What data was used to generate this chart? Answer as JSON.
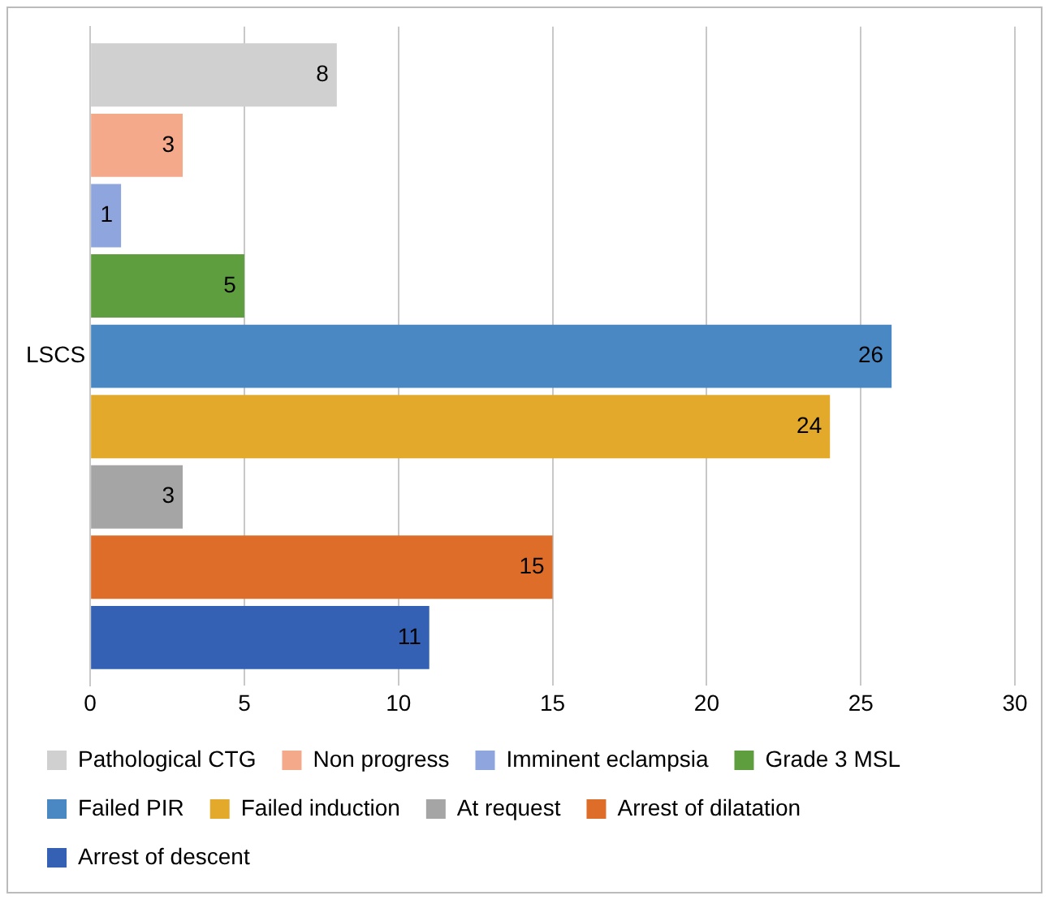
{
  "chart_data": {
    "type": "bar",
    "orientation": "horizontal",
    "categories": [
      "LSCS"
    ],
    "series": [
      {
        "name": "Pathological CTG",
        "color": "#d0d0d0",
        "values": [
          8
        ]
      },
      {
        "name": "Non progress",
        "color": "#f4a98a",
        "values": [
          3
        ]
      },
      {
        "name": "Imminent eclampsia",
        "color": "#8fa5dd",
        "values": [
          1
        ]
      },
      {
        "name": "Grade 3 MSL",
        "color": "#5f9e3e",
        "values": [
          5
        ]
      },
      {
        "name": "Failed PIR",
        "color": "#4a88c4",
        "values": [
          26
        ]
      },
      {
        "name": "Failed induction",
        "color": "#e3a92a",
        "values": [
          24
        ]
      },
      {
        "name": "At request",
        "color": "#a5a5a5",
        "values": [
          3
        ]
      },
      {
        "name": "Arrest of dilatation",
        "color": "#df6d2a",
        "values": [
          15
        ]
      },
      {
        "name": "Arrest of descent",
        "color": "#3561b4",
        "values": [
          11
        ]
      }
    ],
    "xlim": [
      0,
      30
    ],
    "xticks": [
      0,
      5,
      10,
      15,
      20,
      25,
      30
    ],
    "grid": "x",
    "legend": "bottom",
    "data_labels": true
  }
}
